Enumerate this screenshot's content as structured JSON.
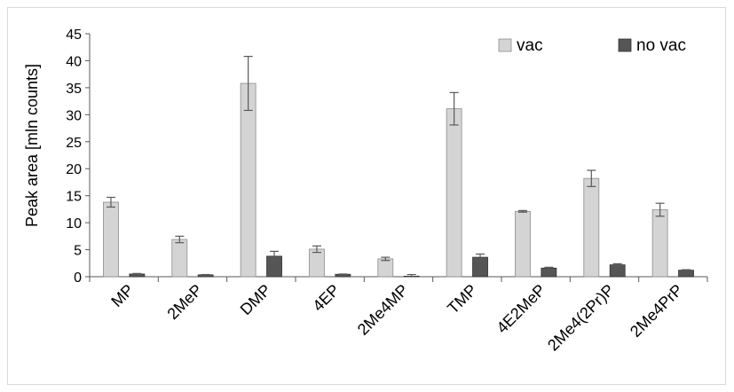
{
  "chart_data": {
    "type": "bar",
    "title": "",
    "xlabel": "",
    "ylabel": "Peak area [mln counts]",
    "ylim": [
      0,
      45
    ],
    "yticks": [
      0,
      5,
      10,
      15,
      20,
      25,
      30,
      35,
      40,
      45
    ],
    "grid": false,
    "legend_position": "top-right",
    "categories": [
      "MP",
      "2MeP",
      "DMP",
      "4EP",
      "2Me4MP",
      "TMP",
      "4E2MeP",
      "2Me4(2Pr)P",
      "2Me4PrP"
    ],
    "series": [
      {
        "name": "vac",
        "color": "#d4d4d4",
        "values": [
          13.8,
          6.9,
          35.8,
          5.1,
          3.3,
          31.1,
          12.1,
          18.2,
          12.4
        ],
        "errors": [
          0.9,
          0.6,
          5.0,
          0.6,
          0.3,
          3.0,
          0.15,
          1.5,
          1.2
        ]
      },
      {
        "name": "no vac",
        "color": "#555555",
        "values": [
          0.5,
          0.35,
          3.8,
          0.45,
          0.1,
          3.6,
          1.6,
          2.2,
          1.2
        ],
        "errors": [
          0.1,
          0.05,
          0.9,
          0.05,
          0.3,
          0.6,
          0.15,
          0.2,
          0.1
        ]
      }
    ]
  }
}
